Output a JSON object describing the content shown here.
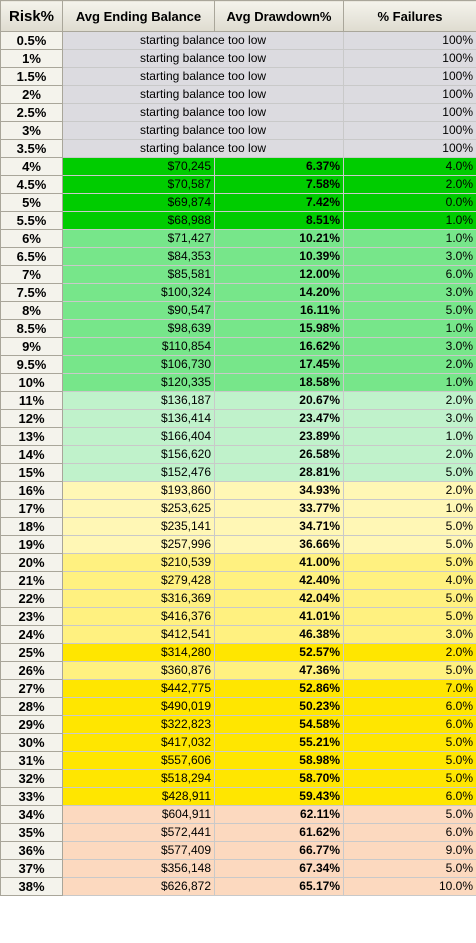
{
  "headers": {
    "risk": "Risk%",
    "balance": "Avg Ending Balance",
    "drawdown": "Avg Drawdown%",
    "failures": "% Failures"
  },
  "colors": {
    "gray": "#dcdbe0",
    "green_dark": "#00cc00",
    "green_mid": "#77e68a",
    "green_light": "#c0f2cb",
    "yellow_light": "#fff7b5",
    "yellow_mid": "#fff180",
    "yellow_bright": "#ffe600",
    "peach": "#fcd9bf"
  },
  "rows": [
    {
      "risk": "0.5%",
      "note": "starting balance too low",
      "failures": "100%",
      "band": "gray"
    },
    {
      "risk": "1%",
      "note": "starting balance too low",
      "failures": "100%",
      "band": "gray"
    },
    {
      "risk": "1.5%",
      "note": "starting balance too low",
      "failures": "100%",
      "band": "gray"
    },
    {
      "risk": "2%",
      "note": "starting balance too low",
      "failures": "100%",
      "band": "gray"
    },
    {
      "risk": "2.5%",
      "note": "starting balance too low",
      "failures": "100%",
      "band": "gray"
    },
    {
      "risk": "3%",
      "note": "starting balance too low",
      "failures": "100%",
      "band": "gray"
    },
    {
      "risk": "3.5%",
      "note": "starting balance too low",
      "failures": "100%",
      "band": "gray"
    },
    {
      "risk": "4%",
      "balance": "$70,245",
      "drawdown": "6.37%",
      "failures": "4.0%",
      "band": "green_dark"
    },
    {
      "risk": "4.5%",
      "balance": "$70,587",
      "drawdown": "7.58%",
      "failures": "2.0%",
      "band": "green_dark"
    },
    {
      "risk": "5%",
      "balance": "$69,874",
      "drawdown": "7.42%",
      "failures": "0.0%",
      "band": "green_dark"
    },
    {
      "risk": "5.5%",
      "balance": "$68,988",
      "drawdown": "8.51%",
      "failures": "1.0%",
      "band": "green_dark"
    },
    {
      "risk": "6%",
      "balance": "$71,427",
      "drawdown": "10.21%",
      "failures": "1.0%",
      "band": "green_mid"
    },
    {
      "risk": "6.5%",
      "balance": "$84,353",
      "drawdown": "10.39%",
      "failures": "3.0%",
      "band": "green_mid"
    },
    {
      "risk": "7%",
      "balance": "$85,581",
      "drawdown": "12.00%",
      "failures": "6.0%",
      "band": "green_mid"
    },
    {
      "risk": "7.5%",
      "balance": "$100,324",
      "drawdown": "14.20%",
      "failures": "3.0%",
      "band": "green_mid"
    },
    {
      "risk": "8%",
      "balance": "$90,547",
      "drawdown": "16.11%",
      "failures": "5.0%",
      "band": "green_mid"
    },
    {
      "risk": "8.5%",
      "balance": "$98,639",
      "drawdown": "15.98%",
      "failures": "1.0%",
      "band": "green_mid"
    },
    {
      "risk": "9%",
      "balance": "$110,854",
      "drawdown": "16.62%",
      "failures": "3.0%",
      "band": "green_mid"
    },
    {
      "risk": "9.5%",
      "balance": "$106,730",
      "drawdown": "17.45%",
      "failures": "2.0%",
      "band": "green_mid"
    },
    {
      "risk": "10%",
      "balance": "$120,335",
      "drawdown": "18.58%",
      "failures": "1.0%",
      "band": "green_mid"
    },
    {
      "risk": "11%",
      "balance": "$136,187",
      "drawdown": "20.67%",
      "failures": "2.0%",
      "band": "green_light"
    },
    {
      "risk": "12%",
      "balance": "$136,414",
      "drawdown": "23.47%",
      "failures": "3.0%",
      "band": "green_light"
    },
    {
      "risk": "13%",
      "balance": "$166,404",
      "drawdown": "23.89%",
      "failures": "1.0%",
      "band": "green_light"
    },
    {
      "risk": "14%",
      "balance": "$156,620",
      "drawdown": "26.58%",
      "failures": "2.0%",
      "band": "green_light"
    },
    {
      "risk": "15%",
      "balance": "$152,476",
      "drawdown": "28.81%",
      "failures": "5.0%",
      "band": "green_light"
    },
    {
      "risk": "16%",
      "balance": "$193,860",
      "drawdown": "34.93%",
      "failures": "2.0%",
      "band": "yellow_light"
    },
    {
      "risk": "17%",
      "balance": "$253,625",
      "drawdown": "33.77%",
      "failures": "1.0%",
      "band": "yellow_light"
    },
    {
      "risk": "18%",
      "balance": "$235,141",
      "drawdown": "34.71%",
      "failures": "5.0%",
      "band": "yellow_light"
    },
    {
      "risk": "19%",
      "balance": "$257,996",
      "drawdown": "36.66%",
      "failures": "5.0%",
      "band": "yellow_light"
    },
    {
      "risk": "20%",
      "balance": "$210,539",
      "drawdown": "41.00%",
      "failures": "5.0%",
      "band": "yellow_mid"
    },
    {
      "risk": "21%",
      "balance": "$279,428",
      "drawdown": "42.40%",
      "failures": "4.0%",
      "band": "yellow_mid"
    },
    {
      "risk": "22%",
      "balance": "$316,369",
      "drawdown": "42.04%",
      "failures": "5.0%",
      "band": "yellow_mid"
    },
    {
      "risk": "23%",
      "balance": "$416,376",
      "drawdown": "41.01%",
      "failures": "5.0%",
      "band": "yellow_mid"
    },
    {
      "risk": "24%",
      "balance": "$412,541",
      "drawdown": "46.38%",
      "failures": "3.0%",
      "band": "yellow_mid"
    },
    {
      "risk": "25%",
      "balance": "$314,280",
      "drawdown": "52.57%",
      "failures": "2.0%",
      "band": "yellow_bright"
    },
    {
      "risk": "26%",
      "balance": "$360,876",
      "drawdown": "47.36%",
      "failures": "5.0%",
      "band": "yellow_mid"
    },
    {
      "risk": "27%",
      "balance": "$442,775",
      "drawdown": "52.86%",
      "failures": "7.0%",
      "band": "yellow_bright"
    },
    {
      "risk": "28%",
      "balance": "$490,019",
      "drawdown": "50.23%",
      "failures": "6.0%",
      "band": "yellow_bright"
    },
    {
      "risk": "29%",
      "balance": "$322,823",
      "drawdown": "54.58%",
      "failures": "6.0%",
      "band": "yellow_bright"
    },
    {
      "risk": "30%",
      "balance": "$417,032",
      "drawdown": "55.21%",
      "failures": "5.0%",
      "band": "yellow_bright"
    },
    {
      "risk": "31%",
      "balance": "$557,606",
      "drawdown": "58.98%",
      "failures": "5.0%",
      "band": "yellow_bright"
    },
    {
      "risk": "32%",
      "balance": "$518,294",
      "drawdown": "58.70%",
      "failures": "5.0%",
      "band": "yellow_bright"
    },
    {
      "risk": "33%",
      "balance": "$428,911",
      "drawdown": "59.43%",
      "failures": "6.0%",
      "band": "yellow_bright"
    },
    {
      "risk": "34%",
      "balance": "$604,911",
      "drawdown": "62.11%",
      "failures": "5.0%",
      "band": "peach"
    },
    {
      "risk": "35%",
      "balance": "$572,441",
      "drawdown": "61.62%",
      "failures": "6.0%",
      "band": "peach"
    },
    {
      "risk": "36%",
      "balance": "$577,409",
      "drawdown": "66.77%",
      "failures": "9.0%",
      "band": "peach"
    },
    {
      "risk": "37%",
      "balance": "$356,148",
      "drawdown": "67.34%",
      "failures": "5.0%",
      "band": "peach"
    },
    {
      "risk": "38%",
      "balance": "$626,872",
      "drawdown": "65.17%",
      "failures": "10.0%",
      "band": "peach"
    }
  ]
}
